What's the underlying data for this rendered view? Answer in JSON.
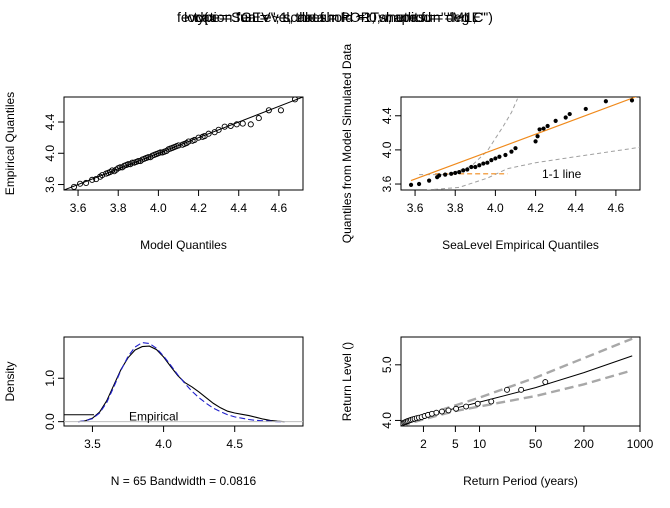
{
  "title": {
    "lines": [
      "fevd(x = SeaLevel, data = PORTw, units = \"deg C\")",
      "type = \"GEV\", scale.fun = ~1, shape.fun = ~1,",
      "location.fun = ~1, threshold = 0, method = \"MLE\""
    ]
  },
  "chart_data": [
    {
      "id": "qq-model",
      "type": "scatter",
      "xlabel": "Model Quantiles",
      "ylabel": "Empirical Quantiles",
      "xlim": [
        3.53,
        4.72
      ],
      "ylim": [
        3.53,
        4.72
      ],
      "xticks": [
        3.6,
        3.8,
        4.0,
        4.2,
        4.4,
        4.6
      ],
      "yticks": [
        3.6,
        4.0,
        4.4
      ],
      "tick_labels_x": [
        "3.6",
        "3.8",
        "4.0",
        "4.2",
        "4.4",
        "4.6"
      ],
      "tick_labels_y": [
        "3.6",
        "4.0",
        "4.4"
      ],
      "reference_line": [
        [
          3.53,
          3.53
        ],
        [
          4.72,
          4.72
        ]
      ],
      "x": [
        3.58,
        3.61,
        3.64,
        3.67,
        3.69,
        3.71,
        3.72,
        3.74,
        3.75,
        3.76,
        3.77,
        3.78,
        3.79,
        3.8,
        3.81,
        3.82,
        3.83,
        3.84,
        3.85,
        3.86,
        3.87,
        3.88,
        3.89,
        3.9,
        3.91,
        3.92,
        3.93,
        3.94,
        3.95,
        3.96,
        3.97,
        3.98,
        3.99,
        4.0,
        4.01,
        4.02,
        4.03,
        4.04,
        4.05,
        4.06,
        4.07,
        4.08,
        4.09,
        4.1,
        4.12,
        4.13,
        4.14,
        4.15,
        4.17,
        4.18,
        4.2,
        4.22,
        4.23,
        4.25,
        4.28,
        4.3,
        4.33,
        4.36,
        4.39,
        4.42,
        4.46,
        4.5,
        4.55,
        4.61,
        4.68
      ],
      "y": [
        3.57,
        3.61,
        3.62,
        3.66,
        3.67,
        3.7,
        3.72,
        3.74,
        3.75,
        3.76,
        3.78,
        3.77,
        3.79,
        3.81,
        3.82,
        3.82,
        3.84,
        3.85,
        3.86,
        3.86,
        3.88,
        3.88,
        3.89,
        3.9,
        3.9,
        3.92,
        3.93,
        3.94,
        3.95,
        3.95,
        3.97,
        3.98,
        3.99,
        4.0,
        4.01,
        4.01,
        4.02,
        4.03,
        4.05,
        4.06,
        4.07,
        4.08,
        4.09,
        4.1,
        4.11,
        4.12,
        4.13,
        4.15,
        4.16,
        4.17,
        4.2,
        4.21,
        4.22,
        4.25,
        4.27,
        4.3,
        4.34,
        4.35,
        4.37,
        4.38,
        4.37,
        4.45,
        4.55,
        4.55,
        4.69
      ]
    },
    {
      "id": "qq-simulated",
      "type": "scatter",
      "xlabel": "SeaLevel Empirical Quantiles",
      "ylabel": "Quantiles from Model Simulated Data",
      "xlim": [
        3.53,
        4.72
      ],
      "ylim": [
        3.53,
        4.62
      ],
      "xticks": [
        3.6,
        3.8,
        4.0,
        4.2,
        4.4,
        4.6
      ],
      "yticks": [
        3.6,
        4.0,
        4.4
      ],
      "tick_labels_x": [
        "3.6",
        "3.8",
        "4.0",
        "4.2",
        "4.4",
        "4.6"
      ],
      "tick_labels_y": [
        "3.6",
        "4.0",
        "4.4"
      ],
      "annotation": "1-1 line",
      "x": [
        3.58,
        3.62,
        3.67,
        3.71,
        3.72,
        3.75,
        3.78,
        3.8,
        3.82,
        3.84,
        3.86,
        3.88,
        3.9,
        3.92,
        3.94,
        3.96,
        3.98,
        4.0,
        4.02,
        4.05,
        4.08,
        4.1,
        4.2,
        4.21,
        4.22,
        4.24,
        4.26,
        4.3,
        4.35,
        4.37,
        4.45,
        4.55,
        4.68
      ],
      "y": [
        3.59,
        3.6,
        3.64,
        3.68,
        3.7,
        3.71,
        3.72,
        3.73,
        3.74,
        3.76,
        3.77,
        3.8,
        3.8,
        3.82,
        3.84,
        3.85,
        3.88,
        3.9,
        3.92,
        3.94,
        3.98,
        4.02,
        4.1,
        4.16,
        4.24,
        4.25,
        4.28,
        4.34,
        4.38,
        4.42,
        4.48,
        4.57,
        4.58
      ],
      "fit_line": [
        [
          3.58,
          3.64
        ],
        [
          4.72,
          4.64
        ]
      ],
      "envelope_upper": [
        [
          3.62,
          3.71
        ],
        [
          3.76,
          3.71
        ],
        [
          3.88,
          3.81
        ],
        [
          3.96,
          3.99
        ],
        [
          4.04,
          4.28
        ],
        [
          4.08,
          4.44
        ],
        [
          4.11,
          4.6
        ]
      ],
      "envelope_lower": [
        [
          3.66,
          3.53
        ],
        [
          3.82,
          3.56
        ],
        [
          3.96,
          3.67
        ],
        [
          4.06,
          3.78
        ],
        [
          4.2,
          3.85
        ],
        [
          4.4,
          3.92
        ],
        [
          4.72,
          4.03
        ]
      ]
    },
    {
      "id": "density",
      "type": "line",
      "xlabel": "N = 65   Bandwidth = 0.0816",
      "ylabel": "Density",
      "xlim": [
        3.3,
        4.98
      ],
      "ylim": [
        -0.1,
        1.95
      ],
      "xticks": [
        3.5,
        4.0,
        4.5
      ],
      "yticks": [
        0.0,
        1.0
      ],
      "tick_labels_x": [
        "3.5",
        "4.0",
        "4.5"
      ],
      "tick_labels_y": [
        "0.0",
        "1.0"
      ],
      "legend": {
        "position": "bottom-left",
        "entries": [
          "Empirical"
        ]
      },
      "series": [
        {
          "name": "Empirical",
          "style": "solid",
          "x": [
            3.4,
            3.45,
            3.5,
            3.55,
            3.6,
            3.65,
            3.7,
            3.75,
            3.8,
            3.85,
            3.9,
            3.95,
            4.0,
            4.05,
            4.1,
            4.15,
            4.2,
            4.25,
            4.3,
            4.35,
            4.4,
            4.45,
            4.5,
            4.55,
            4.6,
            4.65,
            4.7,
            4.75,
            4.8,
            4.85
          ],
          "values": [
            0.0,
            0.02,
            0.08,
            0.22,
            0.48,
            0.84,
            1.2,
            1.47,
            1.65,
            1.73,
            1.74,
            1.66,
            1.49,
            1.27,
            1.06,
            0.9,
            0.8,
            0.68,
            0.55,
            0.42,
            0.32,
            0.24,
            0.2,
            0.17,
            0.14,
            0.1,
            0.06,
            0.03,
            0.01,
            0.0
          ]
        },
        {
          "style": "dashed",
          "color": "#1f1fcc",
          "x": [
            3.4,
            3.45,
            3.5,
            3.55,
            3.6,
            3.65,
            3.7,
            3.75,
            3.8,
            3.85,
            3.9,
            3.95,
            4.0,
            4.05,
            4.1,
            4.15,
            4.2,
            4.25,
            4.3,
            4.35,
            4.4,
            4.45,
            4.5,
            4.55,
            4.6,
            4.65,
            4.7,
            4.75,
            4.8,
            4.85
          ],
          "values": [
            0.0,
            0.02,
            0.07,
            0.2,
            0.44,
            0.8,
            1.18,
            1.5,
            1.72,
            1.82,
            1.8,
            1.69,
            1.51,
            1.3,
            1.08,
            0.88,
            0.7,
            0.55,
            0.42,
            0.31,
            0.23,
            0.16,
            0.11,
            0.08,
            0.05,
            0.03,
            0.02,
            0.01,
            0.0,
            0.0
          ]
        }
      ]
    },
    {
      "id": "return-level",
      "type": "line",
      "xlabel": "Return Period (years)",
      "ylabel": "Return Level ()",
      "xscale": "log",
      "xlim": [
        1.05,
        1000
      ],
      "ylim": [
        3.9,
        5.5
      ],
      "xticks": [
        2,
        5,
        10,
        50,
        200,
        1000
      ],
      "yticks": [
        4.0,
        5.0
      ],
      "tick_labels_x": [
        "2",
        "5",
        "10",
        "50",
        "200",
        "1000"
      ],
      "tick_labels_y": [
        "4.0",
        "5.0"
      ],
      "points": {
        "x": [
          1.05,
          1.08,
          1.11,
          1.15,
          1.19,
          1.23,
          1.28,
          1.34,
          1.4,
          1.47,
          1.55,
          1.65,
          1.76,
          1.9,
          2.07,
          2.28,
          2.55,
          2.9,
          3.4,
          4.1,
          5.1,
          6.8,
          9.5,
          14.0,
          22.0,
          33.0,
          66.0
        ],
        "y": [
          3.93,
          3.94,
          3.95,
          3.96,
          3.97,
          3.98,
          3.99,
          4.0,
          4.01,
          4.02,
          4.03,
          4.04,
          4.05,
          4.06,
          4.08,
          4.1,
          4.12,
          4.14,
          4.16,
          4.18,
          4.21,
          4.25,
          4.3,
          4.34,
          4.55,
          4.55,
          4.69
        ]
      },
      "fit": {
        "x": [
          1.05,
          2,
          5,
          10,
          50,
          200,
          800
        ],
        "y": [
          3.93,
          4.06,
          4.22,
          4.33,
          4.59,
          4.86,
          5.16
        ]
      },
      "upper": {
        "x": [
          1.05,
          2,
          5,
          10,
          50,
          200,
          800
        ],
        "y": [
          3.95,
          4.09,
          4.27,
          4.41,
          4.77,
          5.12,
          5.47
        ]
      },
      "lower": {
        "x": [
          1.05,
          2,
          5,
          10,
          50,
          200,
          800
        ],
        "y": [
          3.9,
          4.02,
          4.17,
          4.25,
          4.44,
          4.65,
          4.9
        ]
      }
    }
  ]
}
